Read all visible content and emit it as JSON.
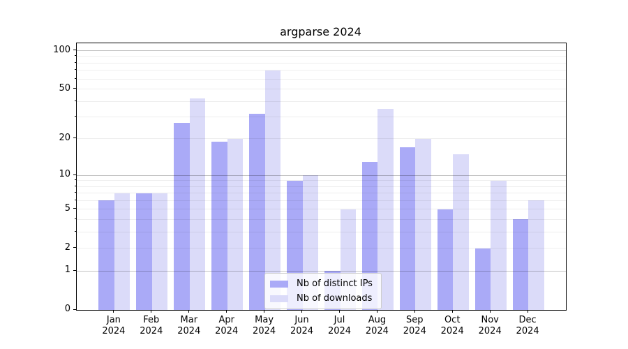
{
  "title": "argparse 2024",
  "legend": {
    "items": [
      {
        "label": "Nb of distinct IPs",
        "color": "#aaaaf7"
      },
      {
        "label": "Nb of downloads",
        "color": "#dbdbf9"
      }
    ]
  },
  "chart_data": {
    "type": "bar",
    "title": "argparse 2024",
    "categories": [
      "Jan 2024",
      "Feb 2024",
      "Mar 2024",
      "Apr 2024",
      "May 2024",
      "Jun 2024",
      "Jul 2024",
      "Aug 2024",
      "Sep 2024",
      "Oct 2024",
      "Nov 2024",
      "Dec 2024"
    ],
    "series": [
      {
        "name": "Nb of distinct IPs",
        "color": "#aaaaf7",
        "values": [
          6,
          7,
          27,
          19,
          32,
          9,
          1,
          13,
          17,
          5,
          2,
          4
        ]
      },
      {
        "name": "Nb of downloads",
        "color": "#dbdbf9",
        "values": [
          7,
          7,
          42,
          20,
          70,
          10,
          5,
          35,
          20,
          15,
          9,
          6
        ]
      }
    ],
    "xlabel": "",
    "ylabel": "",
    "yscale": "log1p",
    "ylim": [
      0,
      114
    ],
    "y_ticks": [
      0,
      1,
      2,
      5,
      10,
      20,
      50,
      100
    ],
    "y_major_gridlines": [
      1,
      10,
      100
    ],
    "y_minor_gridlines": [
      2,
      3,
      4,
      5,
      6,
      7,
      8,
      9,
      20,
      30,
      40,
      50,
      60,
      70,
      80,
      90
    ],
    "grid": true,
    "legend_position": "lower center"
  }
}
